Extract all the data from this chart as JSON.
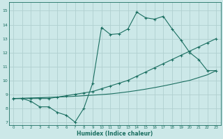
{
  "xlabel": "Humidex (Indice chaleur)",
  "bg_color": "#cce8e8",
  "grid_color": "#b0d0d0",
  "line_color": "#1a6e60",
  "xlim": [
    -0.5,
    23.5
  ],
  "ylim": [
    6.8,
    15.6
  ],
  "xticks": [
    0,
    1,
    2,
    3,
    4,
    5,
    6,
    7,
    8,
    9,
    10,
    11,
    12,
    13,
    14,
    15,
    16,
    17,
    18,
    19,
    20,
    21,
    22,
    23
  ],
  "yticks": [
    7,
    8,
    9,
    10,
    11,
    12,
    13,
    14,
    15
  ],
  "line1_x": [
    0,
    1,
    2,
    3,
    4,
    5,
    6,
    7,
    8,
    9,
    10,
    11,
    12,
    13,
    14,
    15,
    16,
    17,
    18,
    19,
    20,
    21,
    22,
    23
  ],
  "line1_y": [
    8.7,
    8.7,
    8.5,
    8.1,
    8.1,
    7.7,
    7.5,
    7.0,
    8.0,
    9.8,
    13.8,
    13.3,
    13.35,
    13.7,
    14.9,
    14.5,
    14.4,
    14.6,
    13.7,
    12.9,
    12.0,
    11.5,
    10.7,
    10.7
  ],
  "line2_x": [
    0,
    1,
    2,
    3,
    4,
    5,
    6,
    7,
    8,
    9,
    10,
    11,
    12,
    13,
    14,
    15,
    16,
    17,
    18,
    19,
    20,
    21,
    22,
    23
  ],
  "line2_y": [
    8.7,
    8.7,
    8.7,
    8.7,
    8.7,
    8.8,
    8.9,
    9.0,
    9.1,
    9.2,
    9.4,
    9.6,
    9.8,
    10.0,
    10.3,
    10.6,
    10.9,
    11.2,
    11.5,
    11.8,
    12.1,
    12.4,
    12.7,
    13.0
  ],
  "line3_x": [
    0,
    1,
    2,
    3,
    4,
    5,
    6,
    7,
    8,
    9,
    10,
    11,
    12,
    13,
    14,
    15,
    16,
    17,
    18,
    19,
    20,
    21,
    22,
    23
  ],
  "line3_y": [
    8.7,
    8.72,
    8.74,
    8.76,
    8.78,
    8.8,
    8.83,
    8.86,
    8.9,
    8.94,
    8.98,
    9.03,
    9.1,
    9.18,
    9.27,
    9.37,
    9.48,
    9.6,
    9.73,
    9.87,
    10.0,
    10.2,
    10.4,
    10.7
  ]
}
